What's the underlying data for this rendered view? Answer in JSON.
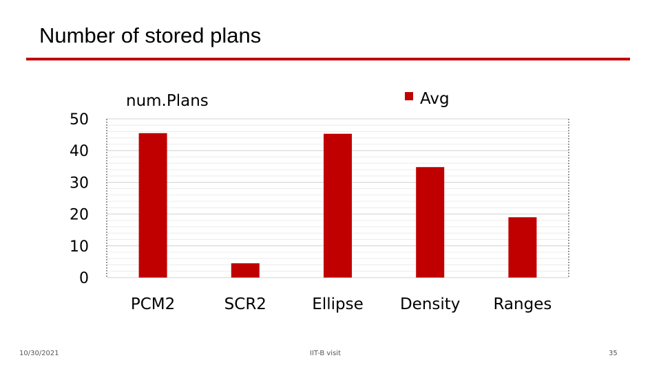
{
  "slide": {
    "title": "Number of stored plans",
    "footer_date": "10/30/2021",
    "footer_center": "IIT-B visit",
    "page_number": "35",
    "accent_color": "#c00000"
  },
  "chart_data": {
    "type": "bar",
    "title": "num.Plans",
    "categories": [
      "PCM2",
      "SCR2",
      "Ellipse",
      "Density",
      "Ranges"
    ],
    "series": [
      {
        "name": "Avg",
        "values": [
          45.5,
          4.5,
          45.3,
          34.8,
          19
        ],
        "color": "#c00000"
      }
    ],
    "ylim": [
      0,
      50
    ],
    "yticks": [
      0,
      10,
      20,
      30,
      40,
      50
    ],
    "grid": true,
    "legend": "top-right",
    "xlabel": "",
    "ylabel": ""
  }
}
